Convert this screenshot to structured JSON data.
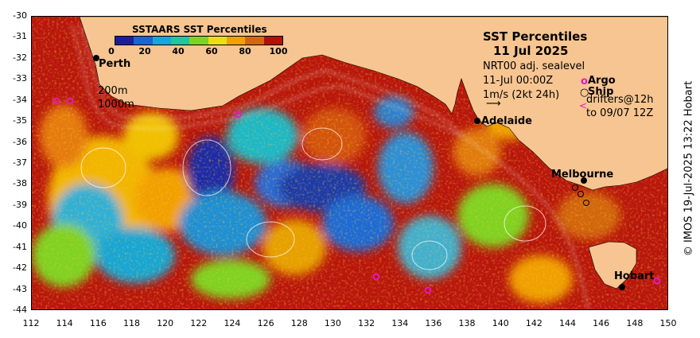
{
  "title": "SST Percentiles",
  "date": "11 Jul 2025",
  "product": "NRT00 adj. sealevel",
  "valid_time": "11-Jul 00:00Z",
  "vector_scale": "1m/s (2kt 24h)",
  "legend": {
    "title": "SSTAARS SST Percentiles",
    "ticks": [
      "0",
      "20",
      "40",
      "60",
      "80",
      "100"
    ],
    "colors": [
      "#1d1d9c",
      "#1565d8",
      "#14a6e0",
      "#1fc6a0",
      "#7ed321",
      "#e8e010",
      "#f5a000",
      "#d7660a",
      "#b11108"
    ]
  },
  "markers": {
    "argo_label": "Argo",
    "ship_label": "Ship",
    "drifters_label": "drifters@12h",
    "drifters_range": "to 09/07 12Z",
    "argo_color": "#e817c8"
  },
  "contours": {
    "c200": "200m",
    "c1000": "1000m"
  },
  "places": {
    "perth": "Perth",
    "adelaide": "Adelaide",
    "melbourne": "Melbourne",
    "hobart": "Hobart"
  },
  "axes": {
    "lat_ticks": [
      "-30",
      "-31",
      "-32",
      "-33",
      "-34",
      "-35",
      "-36",
      "-37",
      "-38",
      "-39",
      "-40",
      "-41",
      "-42",
      "-43",
      "-44"
    ],
    "lon_ticks": [
      "112",
      "114",
      "116",
      "118",
      "120",
      "122",
      "124",
      "126",
      "128",
      "130",
      "132",
      "134",
      "136",
      "138",
      "140",
      "142",
      "144",
      "146",
      "148",
      "150"
    ]
  },
  "credit": "© IMOS 19-Jul-2025 13:22 Hobart"
}
